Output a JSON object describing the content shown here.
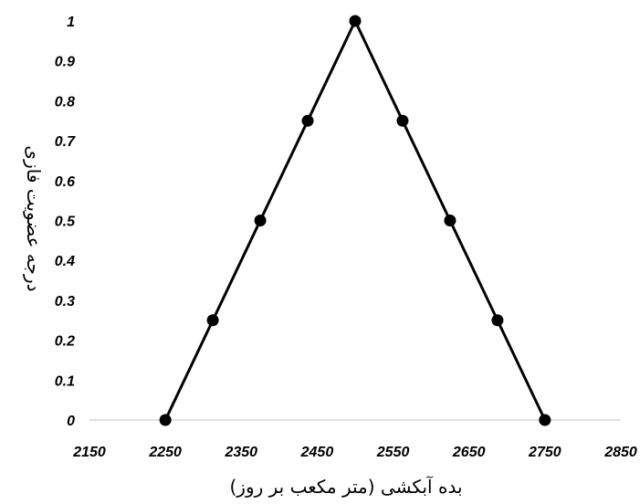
{
  "chart_data": {
    "type": "line",
    "title": "",
    "xlabel": "بده آبکشی (متر مکعب بر روز)",
    "ylabel": "درجه عضویت فازی",
    "xlim": [
      2150,
      2850
    ],
    "ylim": [
      0,
      1
    ],
    "x_ticks": [
      "2150",
      "2250",
      "2350",
      "2450",
      "2550",
      "2650",
      "2750",
      "2850"
    ],
    "y_ticks": [
      "0",
      "0.1",
      "0.2",
      "0.3",
      "0.4",
      "0.5",
      "0.6",
      "0.7",
      "0.8",
      "0.9",
      "1"
    ],
    "grid": false,
    "legend": "none",
    "series": [
      {
        "x": [
          2250,
          2312.5,
          2375,
          2437.5,
          2500,
          2562.5,
          2625,
          2687.5,
          2750
        ],
        "y": [
          0,
          0.25,
          0.5,
          0.75,
          1,
          0.75,
          0.5,
          0.25,
          0
        ],
        "color": "#000000",
        "marker": "circle"
      }
    ],
    "colors": {
      "line": "#000000",
      "axis": "#bfbfbf"
    }
  }
}
